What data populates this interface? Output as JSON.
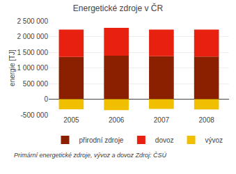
{
  "chart_data": {
    "type": "bar",
    "title": "Energetické zdroje v ČR",
    "categories": [
      "2005",
      "2006",
      "2007",
      "2008"
    ],
    "series": [
      {
        "name": "přirodní zdroje",
        "color": "#8B2000",
        "values": [
          1350000,
          1390000,
          1370000,
          1360000
        ]
      },
      {
        "name": "dovoz",
        "color": "#E82010",
        "values": [
          870000,
          890000,
          850000,
          860000
        ]
      },
      {
        "name": "vývoz",
        "color": "#F0C000",
        "values": [
          -320000,
          -350000,
          -310000,
          -330000
        ]
      }
    ],
    "ylabel": "energie [TJ]",
    "ylim": [
      -500000,
      2500000
    ],
    "yticks": [
      {
        "value": -500000,
        "label": "-500 000"
      },
      0,
      {
        "value": 500000,
        "label": "500 000"
      },
      {
        "value": 1000000,
        "label": "1 000 000"
      },
      {
        "value": 1500000,
        "label": "1 500 000"
      },
      {
        "value": 2000000,
        "label": "2 000 000"
      },
      {
        "value": 2500000,
        "label": "2 500 000"
      }
    ],
    "stacked": true,
    "grid": true,
    "legend": "bottom",
    "annotations": [
      {
        "text": "Primární energetické zdroje, vývoz a dovoz Zdroj: ČSÚ"
      }
    ]
  }
}
